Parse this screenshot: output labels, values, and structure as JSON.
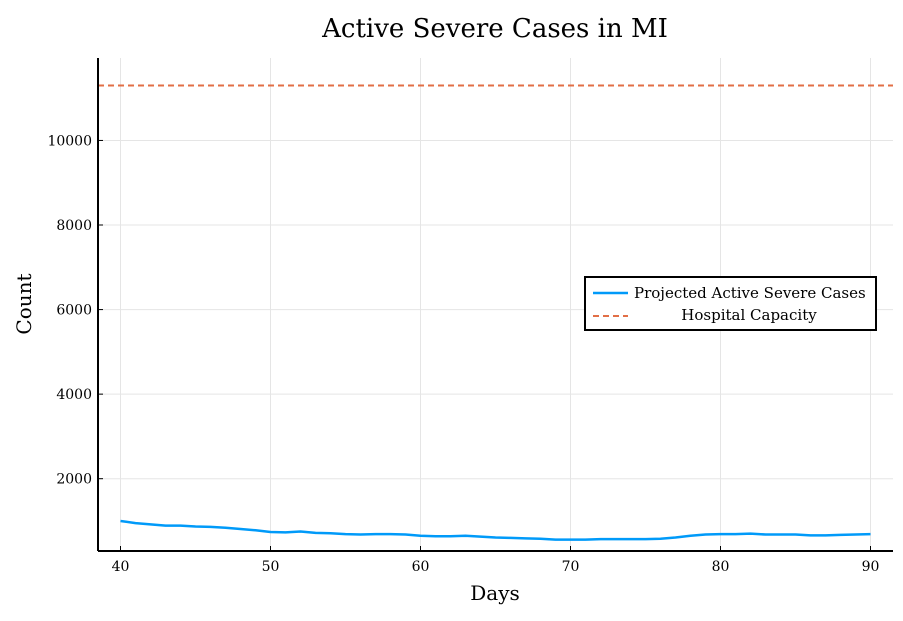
{
  "chart_data": {
    "type": "line",
    "title": "Active Severe Cases in MI",
    "xlabel": "Days",
    "ylabel": "Count",
    "xlim": [
      38.5,
      91.5
    ],
    "ylim": [
      290,
      11950
    ],
    "xticks": [
      40,
      50,
      60,
      70,
      80,
      90
    ],
    "yticks": [
      2000,
      4000,
      6000,
      8000,
      10000
    ],
    "grid": true,
    "legend_position": "right",
    "series": [
      {
        "name": "Projected Active Severe Cases",
        "style": "solid",
        "color": "#009AF9",
        "x": [
          40,
          41,
          42,
          43,
          44,
          45,
          46,
          47,
          48,
          49,
          50,
          51,
          52,
          53,
          54,
          55,
          56,
          57,
          58,
          59,
          60,
          61,
          62,
          63,
          64,
          65,
          66,
          67,
          68,
          69,
          70,
          71,
          72,
          73,
          74,
          75,
          76,
          77,
          78,
          79,
          80,
          81,
          82,
          83,
          84,
          85,
          86,
          87,
          88,
          89,
          90
        ],
        "y": [
          1000,
          950,
          920,
          890,
          890,
          870,
          860,
          840,
          810,
          780,
          740,
          730,
          750,
          720,
          710,
          690,
          680,
          690,
          690,
          680,
          650,
          640,
          640,
          650,
          630,
          610,
          600,
          590,
          580,
          560,
          560,
          560,
          570,
          570,
          570,
          570,
          580,
          610,
          650,
          680,
          690,
          690,
          700,
          680,
          680,
          680,
          660,
          660,
          670,
          680,
          690
        ]
      },
      {
        "name": "Hospital Capacity",
        "style": "dashed",
        "color": "#E26F46",
        "x": [
          38.5,
          91.5
        ],
        "y": [
          11300,
          11300
        ]
      }
    ]
  }
}
